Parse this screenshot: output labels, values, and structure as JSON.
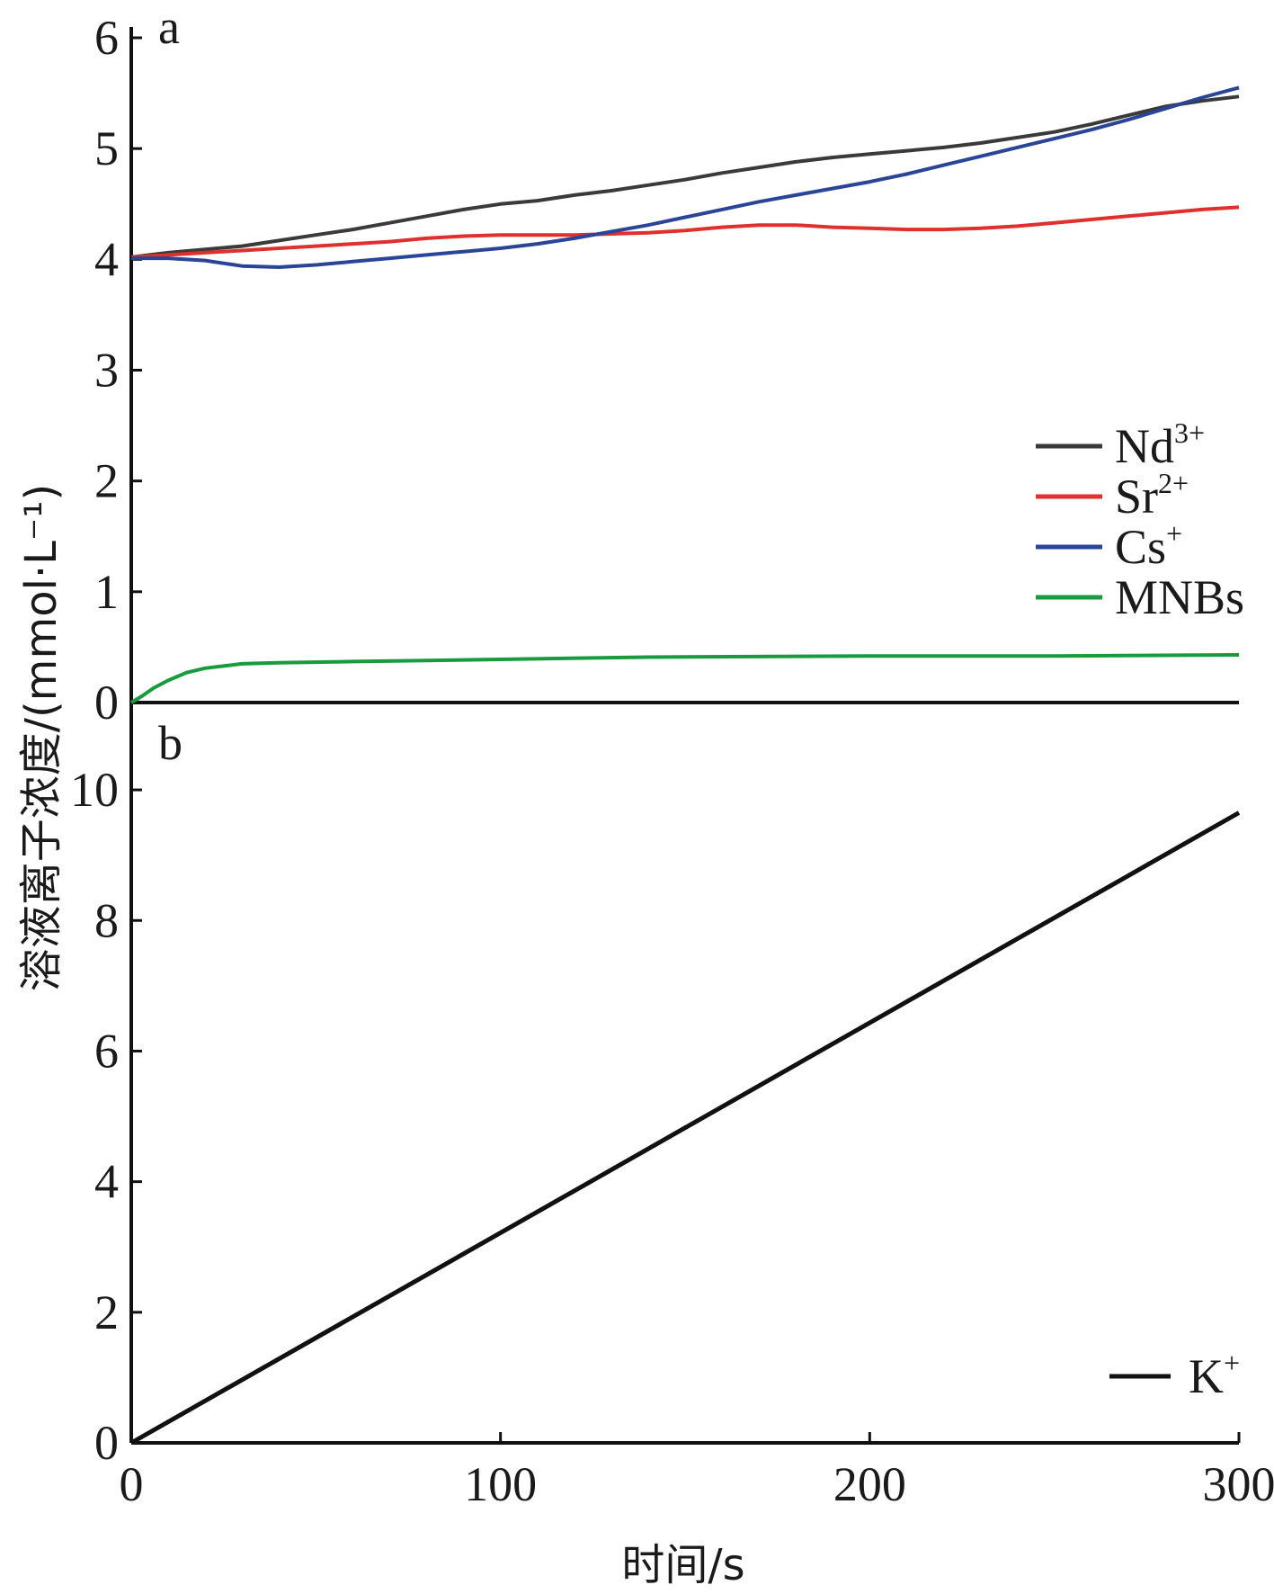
{
  "chart_data": [
    {
      "panel": "a",
      "type": "line",
      "xlim": [
        0,
        300
      ],
      "ylim": [
        0,
        6
      ],
      "yticks": [
        "0",
        "1",
        "2",
        "3",
        "4",
        "5",
        "6"
      ],
      "legend_position": "right",
      "series": [
        {
          "name": "Nd",
          "sup": "3+",
          "color": "#3a3a3a",
          "x": [
            0,
            10,
            20,
            30,
            40,
            50,
            60,
            70,
            80,
            90,
            100,
            110,
            120,
            130,
            140,
            150,
            160,
            170,
            180,
            190,
            200,
            210,
            220,
            230,
            240,
            250,
            260,
            270,
            280,
            290,
            300
          ],
          "y": [
            4.02,
            4.06,
            4.09,
            4.12,
            4.17,
            4.22,
            4.27,
            4.33,
            4.39,
            4.45,
            4.5,
            4.53,
            4.58,
            4.62,
            4.67,
            4.72,
            4.78,
            4.83,
            4.88,
            4.92,
            4.95,
            4.98,
            5.01,
            5.05,
            5.1,
            5.15,
            5.22,
            5.3,
            5.38,
            5.43,
            5.47
          ]
        },
        {
          "name": "Sr",
          "sup": "2+",
          "color": "#e0302e",
          "x": [
            0,
            10,
            20,
            30,
            40,
            50,
            60,
            70,
            80,
            90,
            100,
            110,
            120,
            130,
            140,
            150,
            160,
            170,
            180,
            190,
            200,
            210,
            220,
            230,
            240,
            250,
            260,
            270,
            280,
            290,
            300
          ],
          "y": [
            4.02,
            4.04,
            4.06,
            4.08,
            4.1,
            4.12,
            4.14,
            4.16,
            4.19,
            4.21,
            4.22,
            4.22,
            4.22,
            4.23,
            4.24,
            4.26,
            4.29,
            4.31,
            4.31,
            4.29,
            4.28,
            4.27,
            4.27,
            4.28,
            4.3,
            4.33,
            4.36,
            4.39,
            4.42,
            4.45,
            4.47
          ]
        },
        {
          "name": "Cs",
          "sup": "+",
          "color": "#2a4598",
          "x": [
            0,
            10,
            20,
            30,
            40,
            50,
            60,
            70,
            80,
            90,
            100,
            110,
            120,
            130,
            140,
            150,
            160,
            170,
            180,
            190,
            200,
            210,
            220,
            230,
            240,
            250,
            260,
            270,
            280,
            290,
            300
          ],
          "y": [
            4.01,
            4.01,
            3.99,
            3.94,
            3.93,
            3.95,
            3.98,
            4.01,
            4.04,
            4.07,
            4.1,
            4.14,
            4.19,
            4.25,
            4.31,
            4.38,
            4.45,
            4.52,
            4.58,
            4.64,
            4.7,
            4.77,
            4.85,
            4.93,
            5.01,
            5.09,
            5.17,
            5.26,
            5.36,
            5.46,
            5.55
          ]
        },
        {
          "name": "MNBs",
          "sup": "",
          "color": "#1a9a3e",
          "x": [
            0,
            3,
            6,
            10,
            15,
            20,
            25,
            30,
            40,
            60,
            80,
            100,
            140,
            200,
            250,
            300
          ],
          "y": [
            0.0,
            0.06,
            0.13,
            0.2,
            0.27,
            0.31,
            0.33,
            0.35,
            0.36,
            0.37,
            0.38,
            0.39,
            0.41,
            0.42,
            0.42,
            0.43
          ]
        }
      ]
    },
    {
      "panel": "b",
      "type": "line",
      "xlim": [
        0,
        300
      ],
      "xticks": [
        "0",
        "100",
        "200",
        "300"
      ],
      "ylim": [
        0,
        10.8
      ],
      "yticks": [
        "0",
        "2",
        "4",
        "6",
        "8",
        "10"
      ],
      "legend_position": "bottom-right",
      "series": [
        {
          "name": "K",
          "sup": "+",
          "color": "#111111",
          "x": [
            0,
            300
          ],
          "y": [
            0.0,
            9.65
          ]
        }
      ]
    }
  ],
  "labels": {
    "panel_a": "a",
    "panel_b": "b",
    "xlabel": "时间/s",
    "ylabel": "溶液离子浓度/(mmol·L⁻¹)"
  }
}
